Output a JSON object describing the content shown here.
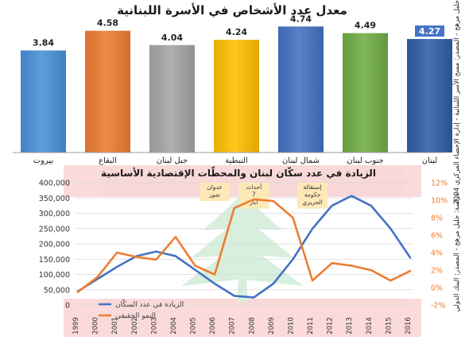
{
  "chart_data": [
    {
      "type": "bar",
      "title": "معدل عدد الأشخاص في الأسرة اللبنانية",
      "categories": [
        "بيروت",
        "البقاع",
        "جبل لبنان",
        "النبطية",
        "شمال لبنان",
        "جنوب لبنان",
        "لبنان"
      ],
      "values": [
        3.84,
        4.58,
        4.04,
        4.24,
        4.74,
        4.49,
        4.27
      ],
      "value_labels": [
        "3.84",
        "4.58",
        "4.04",
        "4.24",
        "4.74",
        "4.49",
        "4.27"
      ],
      "colors": [
        "#4a90d9",
        "#ed7d31",
        "#a5a5a5",
        "#ffc000",
        "#4472c4",
        "#70ad47",
        "#2e5fa8"
      ],
      "ylim": [
        0,
        4.9
      ],
      "grid": false,
      "side_note": "دراسة: خليل مرهج - المصدر: مسح الأسر اللبنانية - إدارة الإحصاء المركزي 2004"
    },
    {
      "type": "line",
      "title": "الزيادة في عدد سكّان لبنان والمحطّات الإقتصادية الأساسية",
      "x": [
        "1999",
        "2000",
        "2001",
        "2002",
        "2003",
        "2004",
        "2005",
        "2006",
        "2007",
        "2008",
        "2009",
        "2010",
        "2011",
        "2012",
        "2013",
        "2014",
        "2015",
        "2016"
      ],
      "y_left": {
        "ticks": [
          "0",
          "50,000",
          "100,000",
          "150,000",
          "200,000",
          "250,000",
          "300,000",
          "350,000",
          "400,000"
        ],
        "range": [
          0,
          400000
        ]
      },
      "y_right": {
        "ticks": [
          "-2%",
          "0%",
          "2%",
          "4%",
          "6%",
          "8%",
          "10%",
          "12%"
        ],
        "range": [
          -2,
          12
        ]
      },
      "series": [
        {
          "name": "الزيادة في عدد السكّان",
          "axis": "left",
          "color": "#4472c4",
          "values": [
            45000,
            85000,
            125000,
            160000,
            175000,
            160000,
            115000,
            70000,
            30000,
            25000,
            70000,
            150000,
            250000,
            325000,
            357000,
            325000,
            250000,
            155000
          ]
        },
        {
          "name": "النمو الحقيقي",
          "axis": "right",
          "color": "#ed7d31",
          "values": [
            -0.5,
            1.2,
            4.0,
            3.5,
            3.2,
            5.8,
            2.5,
            1.5,
            9.1,
            10.1,
            9.9,
            8.0,
            0.8,
            2.8,
            2.5,
            2.0,
            0.8,
            1.9
          ]
        }
      ],
      "annotations": [
        {
          "text": "عدوان تموز",
          "year": "2006"
        },
        {
          "text": "أحداث 7 أيار",
          "year": "2008"
        },
        {
          "text": "إستقالة حكومة الحريري",
          "year": "2011"
        }
      ],
      "legend": "bottom-left",
      "grid": true,
      "side_note": "دراسة: خليل مرهج - المصدر: البنك الدولي"
    }
  ]
}
